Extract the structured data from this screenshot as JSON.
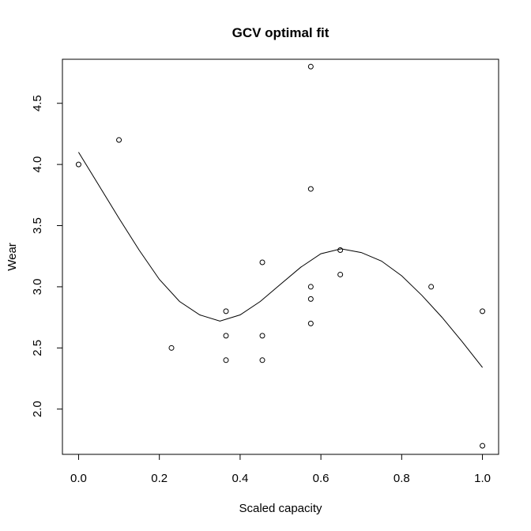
{
  "chart_data": {
    "type": "scatter",
    "title": "GCV optimal fit",
    "xlabel": "Scaled capacity",
    "ylabel": "Wear",
    "xlim": [
      -0.04,
      1.04
    ],
    "ylim": [
      1.63,
      4.86
    ],
    "xticks": [
      "0.0",
      "0.2",
      "0.4",
      "0.6",
      "0.8",
      "1.0"
    ],
    "yticks": [
      "2.0",
      "2.5",
      "3.0",
      "3.5",
      "4.0",
      "4.5"
    ],
    "grid": false,
    "series": [
      {
        "style": "points",
        "points": [
          [
            0.0,
            4.0
          ],
          [
            0.1,
            4.2
          ],
          [
            0.23,
            2.5
          ],
          [
            0.365,
            2.8
          ],
          [
            0.365,
            2.6
          ],
          [
            0.365,
            2.4
          ],
          [
            0.455,
            3.2
          ],
          [
            0.455,
            2.6
          ],
          [
            0.455,
            2.4
          ],
          [
            0.575,
            4.8
          ],
          [
            0.575,
            3.8
          ],
          [
            0.575,
            3.0
          ],
          [
            0.575,
            2.9
          ],
          [
            0.575,
            2.7
          ],
          [
            0.648,
            3.3
          ],
          [
            0.648,
            3.1
          ],
          [
            0.873,
            3.0
          ],
          [
            1.0,
            2.8
          ],
          [
            1.0,
            1.7
          ]
        ]
      },
      {
        "style": "line",
        "points": [
          [
            0.0,
            4.1
          ],
          [
            0.05,
            3.83
          ],
          [
            0.1,
            3.56
          ],
          [
            0.15,
            3.3
          ],
          [
            0.2,
            3.06
          ],
          [
            0.25,
            2.88
          ],
          [
            0.3,
            2.77
          ],
          [
            0.35,
            2.72
          ],
          [
            0.4,
            2.77
          ],
          [
            0.45,
            2.88
          ],
          [
            0.5,
            3.02
          ],
          [
            0.55,
            3.16
          ],
          [
            0.6,
            3.27
          ],
          [
            0.65,
            3.31
          ],
          [
            0.7,
            3.28
          ],
          [
            0.75,
            3.21
          ],
          [
            0.8,
            3.09
          ],
          [
            0.85,
            2.93
          ],
          [
            0.9,
            2.75
          ],
          [
            0.95,
            2.55
          ],
          [
            1.0,
            2.34
          ]
        ]
      }
    ]
  }
}
